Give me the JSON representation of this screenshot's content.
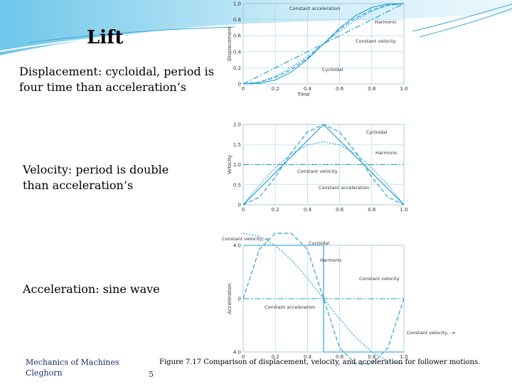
{
  "slide": {
    "title": "Lift",
    "text_displacement": "Displacement: cycloidal, period is four time than acceleration’s",
    "text_velocity": "Velocity: period is double than acceleration’s",
    "text_acceleration": "Acceleration: sine wave",
    "footer_line1": "Mechanics of Machines",
    "footer_line2": "Cleghorn",
    "page_number": "5",
    "caption": "Figure 7.17  Comparison of displacement, velocity, and acceleration for follower motions."
  },
  "colors": {
    "curve": "#1a9ad0",
    "grid": "#9ed3ec",
    "accent": "#2a7fc0",
    "text": "#333333"
  },
  "chart_data": [
    {
      "type": "line",
      "ylabel": "Displacement",
      "xlabel": "Time",
      "xlim": [
        0,
        1.0
      ],
      "ylim": [
        0,
        1.0
      ],
      "x_ticks": [
        "0",
        "0.2",
        "0.4",
        "0.6",
        "0.8",
        "1.0"
      ],
      "y_ticks": [
        "0",
        "0.2",
        "0.4",
        "0.6",
        "0.8",
        "1.0"
      ],
      "x": [
        0,
        0.1,
        0.2,
        0.3,
        0.4,
        0.5,
        0.6,
        0.7,
        0.8,
        0.9,
        1.0
      ],
      "series": [
        {
          "name": "Constant acceleration",
          "values": [
            0,
            0.02,
            0.08,
            0.18,
            0.32,
            0.5,
            0.68,
            0.82,
            0.92,
            0.98,
            1.0
          ]
        },
        {
          "name": "Harmonic",
          "values": [
            0,
            0.024,
            0.095,
            0.206,
            0.345,
            0.5,
            0.655,
            0.794,
            0.905,
            0.976,
            1.0
          ]
        },
        {
          "name": "Constant velocity",
          "values": [
            0,
            0.1,
            0.2,
            0.3,
            0.4,
            0.5,
            0.6,
            0.7,
            0.8,
            0.9,
            1.0
          ]
        },
        {
          "name": "Cycloidal",
          "values": [
            0,
            0.006,
            0.049,
            0.149,
            0.305,
            0.5,
            0.695,
            0.851,
            0.951,
            0.994,
            1.0
          ]
        }
      ]
    },
    {
      "type": "line",
      "ylabel": "Velocity",
      "xlabel": "",
      "xlim": [
        0,
        1.0
      ],
      "ylim": [
        0,
        2.0
      ],
      "x_ticks": [
        "0",
        "0.2",
        "0.4",
        "0.6",
        "0.8",
        "1.0"
      ],
      "y_ticks": [
        "0",
        "0.5",
        "1.0",
        "1.5",
        "2.0"
      ],
      "x": [
        0,
        0.1,
        0.2,
        0.3,
        0.4,
        0.5,
        0.6,
        0.7,
        0.8,
        0.9,
        1.0
      ],
      "series": [
        {
          "name": "Cycloidal",
          "values": [
            0,
            0.19,
            0.69,
            1.31,
            1.81,
            2.0,
            1.81,
            1.31,
            0.69,
            0.19,
            0
          ]
        },
        {
          "name": "Harmonic",
          "values": [
            0,
            0.49,
            0.92,
            1.27,
            1.49,
            1.57,
            1.49,
            1.27,
            0.92,
            0.49,
            0
          ]
        },
        {
          "name": "Constant velocity",
          "values": [
            1,
            1,
            1,
            1,
            1,
            1,
            1,
            1,
            1,
            1,
            1
          ]
        },
        {
          "name": "Constant acceleration",
          "values": [
            0,
            0.4,
            0.8,
            1.2,
            1.6,
            2.0,
            1.6,
            1.2,
            0.8,
            0.4,
            0
          ]
        }
      ]
    },
    {
      "type": "line",
      "ylabel": "Acceleration",
      "xlabel": "",
      "xlim": [
        0,
        1.0
      ],
      "ylim": [
        -4.0,
        4.0
      ],
      "x_ticks": [
        "0",
        "0.2",
        "0.4",
        "0.6",
        "0.8",
        "1.0"
      ],
      "y_ticks": [
        "4.0",
        "0",
        "4.0"
      ],
      "x": [
        0,
        0.1,
        0.2,
        0.3,
        0.4,
        0.5,
        0.6,
        0.7,
        0.8,
        0.9,
        1.0
      ],
      "series": [
        {
          "name": "Cycloidal",
          "values": [
            0,
            3.69,
            5.98,
            5.98,
            3.69,
            0,
            -3.69,
            -5.98,
            -5.98,
            -3.69,
            0
          ]
        },
        {
          "name": "Harmonic",
          "values": [
            4.93,
            4.69,
            3.99,
            2.9,
            1.52,
            0,
            -1.52,
            -2.9,
            -3.99,
            -4.69,
            -4.93
          ]
        },
        {
          "name": "Constant velocity",
          "values": [
            0,
            0,
            0,
            0,
            0,
            0,
            0,
            0,
            0,
            0,
            0
          ]
        },
        {
          "name": "Constant acceleration",
          "values": [
            4,
            4,
            4,
            4,
            4,
            -4,
            -4,
            -4,
            -4,
            -4,
            -4
          ]
        }
      ],
      "annotations": [
        "Constant velocity, ∞",
        "Constant velocity, -∞"
      ]
    }
  ]
}
